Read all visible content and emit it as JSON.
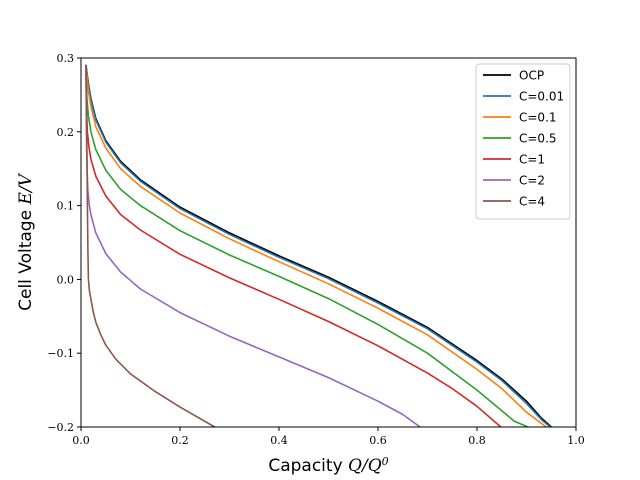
{
  "chart_data": {
    "type": "line",
    "title": "",
    "xlabel": {
      "text": "Capacity ",
      "math": "Q/Q",
      "sup": "0"
    },
    "ylabel": {
      "text": "Cell Voltage ",
      "math": "E/V"
    },
    "xlim": [
      0.0,
      1.0
    ],
    "ylim": [
      -0.2,
      0.3
    ],
    "xticks": [
      0.0,
      0.2,
      0.4,
      0.6,
      0.8,
      1.0
    ],
    "xtick_labels": [
      "0.0",
      "0.2",
      "0.4",
      "0.6",
      "0.8",
      "1.0"
    ],
    "yticks": [
      -0.2,
      -0.1,
      0.0,
      0.1,
      0.2,
      0.3
    ],
    "ytick_labels": [
      "−0.2",
      "−0.1",
      "0.0",
      "0.1",
      "0.2",
      "0.3"
    ],
    "grid": false,
    "legend_position": "top-right",
    "series": [
      {
        "name": "OCP",
        "color": "#000000",
        "x": [
          0.01,
          0.015,
          0.02,
          0.03,
          0.05,
          0.08,
          0.12,
          0.2,
          0.3,
          0.4,
          0.5,
          0.6,
          0.7,
          0.8,
          0.85,
          0.9,
          0.93,
          0.95
        ],
        "y": [
          0.29,
          0.265,
          0.245,
          0.218,
          0.188,
          0.16,
          0.135,
          0.098,
          0.063,
          0.032,
          0.003,
          -0.03,
          -0.065,
          -0.11,
          -0.135,
          -0.165,
          -0.188,
          -0.2
        ]
      },
      {
        "name": "C=0.01",
        "color": "#1f77b4",
        "x": [
          0.01,
          0.015,
          0.02,
          0.03,
          0.05,
          0.08,
          0.12,
          0.2,
          0.3,
          0.4,
          0.5,
          0.6,
          0.7,
          0.8,
          0.85,
          0.9,
          0.93,
          0.948
        ],
        "y": [
          0.289,
          0.263,
          0.243,
          0.216,
          0.186,
          0.158,
          0.133,
          0.096,
          0.061,
          0.03,
          0.001,
          -0.032,
          -0.067,
          -0.112,
          -0.137,
          -0.168,
          -0.19,
          -0.2
        ]
      },
      {
        "name": "C=0.1",
        "color": "#ff7f0e",
        "x": [
          0.01,
          0.015,
          0.02,
          0.03,
          0.05,
          0.08,
          0.12,
          0.2,
          0.3,
          0.4,
          0.5,
          0.6,
          0.7,
          0.8,
          0.85,
          0.9,
          0.94
        ],
        "y": [
          0.287,
          0.255,
          0.234,
          0.207,
          0.178,
          0.15,
          0.126,
          0.09,
          0.055,
          0.024,
          -0.006,
          -0.039,
          -0.075,
          -0.122,
          -0.148,
          -0.18,
          -0.2
        ]
      },
      {
        "name": "C=0.5",
        "color": "#2ca02c",
        "x": [
          0.01,
          0.012,
          0.015,
          0.02,
          0.03,
          0.05,
          0.08,
          0.12,
          0.2,
          0.3,
          0.4,
          0.5,
          0.6,
          0.7,
          0.8,
          0.85,
          0.875,
          0.903
        ],
        "y": [
          0.288,
          0.245,
          0.222,
          0.2,
          0.176,
          0.148,
          0.122,
          0.1,
          0.066,
          0.033,
          0.004,
          -0.026,
          -0.061,
          -0.1,
          -0.15,
          -0.178,
          -0.192,
          -0.2
        ]
      },
      {
        "name": "C=1",
        "color": "#d62728",
        "x": [
          0.01,
          0.011,
          0.013,
          0.016,
          0.02,
          0.03,
          0.05,
          0.08,
          0.12,
          0.2,
          0.3,
          0.4,
          0.5,
          0.6,
          0.7,
          0.75,
          0.8,
          0.848
        ],
        "y": [
          0.288,
          0.235,
          0.2,
          0.18,
          0.163,
          0.14,
          0.113,
          0.088,
          0.067,
          0.034,
          0.002,
          -0.027,
          -0.057,
          -0.09,
          -0.127,
          -0.148,
          -0.172,
          -0.2
        ]
      },
      {
        "name": "C=2",
        "color": "#9467bd",
        "x": [
          0.01,
          0.011,
          0.012,
          0.014,
          0.017,
          0.02,
          0.03,
          0.05,
          0.08,
          0.12,
          0.2,
          0.3,
          0.4,
          0.5,
          0.6,
          0.65,
          0.685
        ],
        "y": [
          0.288,
          0.2,
          0.155,
          0.12,
          0.1,
          0.088,
          0.063,
          0.035,
          0.01,
          -0.013,
          -0.045,
          -0.077,
          -0.105,
          -0.133,
          -0.165,
          -0.183,
          -0.2
        ]
      },
      {
        "name": "C=4",
        "color": "#8c564b",
        "x": [
          0.01,
          0.011,
          0.012,
          0.013,
          0.014,
          0.015,
          0.017,
          0.02,
          0.025,
          0.03,
          0.04,
          0.05,
          0.07,
          0.1,
          0.15,
          0.2,
          0.27
        ],
        "y": [
          0.288,
          0.25,
          0.18,
          0.1,
          0.04,
          0.0,
          -0.015,
          -0.027,
          -0.045,
          -0.058,
          -0.075,
          -0.089,
          -0.108,
          -0.128,
          -0.152,
          -0.173,
          -0.2
        ]
      }
    ]
  }
}
